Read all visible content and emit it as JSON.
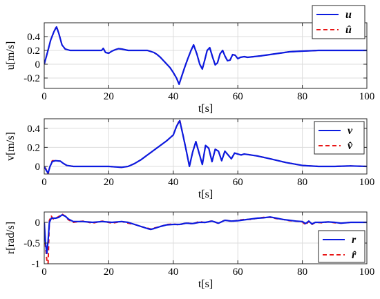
{
  "colors": {
    "estimate": "#e81515",
    "truth": "#0b1be0",
    "grid": "#dcdcdc"
  },
  "chart_data": [
    {
      "type": "line",
      "xlabel": "t[s]",
      "ylabel": "u[m/s]",
      "xlim": [
        0,
        100
      ],
      "ylim": [
        -0.35,
        0.6
      ],
      "xticks": [
        0,
        20,
        40,
        60,
        80,
        100
      ],
      "xtick_labels": [
        "0",
        "20",
        "40",
        "60",
        "80",
        "100"
      ],
      "yticks": [
        -0.2,
        0,
        0.2,
        0.4
      ],
      "ytick_labels": [
        "-0.2",
        "0",
        "0.2",
        "0.4"
      ],
      "grid": true,
      "legend": "top-right",
      "series": [
        {
          "name": "u",
          "style": "solid",
          "x": [
            0,
            1,
            2,
            3,
            3.8,
            4.5,
            5.5,
            6.5,
            8,
            10,
            12,
            15,
            17.8,
            18.3,
            19,
            20,
            21,
            22,
            23,
            24,
            25,
            26,
            28,
            30,
            32,
            34,
            35,
            36,
            37,
            38,
            39,
            40,
            41,
            41.8,
            42.5,
            43.5,
            44.5,
            45.5,
            46.3,
            47.3,
            48.2,
            49,
            49.8,
            50.5,
            51.3,
            52.2,
            53,
            53.7,
            54.5,
            55.3,
            56,
            56.8,
            57.6,
            58.4,
            59.2,
            60,
            60.8,
            62,
            63,
            65,
            67,
            70,
            73,
            76,
            80,
            85,
            90,
            95,
            100
          ],
          "y": [
            0,
            0.17,
            0.35,
            0.47,
            0.54,
            0.45,
            0.28,
            0.22,
            0.2,
            0.2,
            0.2,
            0.2,
            0.2,
            0.23,
            0.17,
            0.16,
            0.19,
            0.21,
            0.225,
            0.22,
            0.21,
            0.2,
            0.2,
            0.2,
            0.2,
            0.17,
            0.14,
            0.1,
            0.05,
            0,
            -0.05,
            -0.12,
            -0.2,
            -0.29,
            -0.19,
            -0.05,
            0.08,
            0.2,
            0.28,
            0.15,
            0.0,
            -0.07,
            0.07,
            0.2,
            0.24,
            0.1,
            -0.01,
            0.02,
            0.15,
            0.2,
            0.12,
            0.05,
            0.06,
            0.14,
            0.13,
            0.08,
            0.1,
            0.11,
            0.1,
            0.11,
            0.12,
            0.14,
            0.16,
            0.18,
            0.19,
            0.2,
            0.2,
            0.2,
            0.2
          ]
        },
        {
          "name": "û",
          "style": "dashed",
          "x": [
            0,
            1,
            2,
            3,
            3.8,
            4.5,
            5.5,
            6.5,
            8,
            10,
            12,
            15,
            17.8,
            18.3,
            19,
            20,
            21,
            22,
            23,
            24,
            25,
            26,
            28,
            30,
            32,
            34,
            35,
            36,
            37,
            38,
            39,
            40,
            41,
            41.8,
            42.5,
            43.5,
            44.5,
            45.5,
            46.3,
            47.3,
            48.2,
            49,
            49.8,
            50.5,
            51.3,
            52.2,
            53,
            53.7,
            54.5,
            55.3,
            56,
            56.8,
            57.6,
            58.4,
            59.2,
            60,
            60.8,
            62,
            63,
            65,
            67,
            70,
            73,
            76,
            80,
            85,
            90,
            95,
            100
          ],
          "y": [
            0,
            0.17,
            0.35,
            0.47,
            0.55,
            0.45,
            0.28,
            0.22,
            0.2,
            0.2,
            0.2,
            0.2,
            0.2,
            0.23,
            0.17,
            0.16,
            0.19,
            0.21,
            0.225,
            0.22,
            0.21,
            0.2,
            0.2,
            0.2,
            0.2,
            0.17,
            0.14,
            0.1,
            0.05,
            0,
            -0.05,
            -0.12,
            -0.2,
            -0.29,
            -0.19,
            -0.05,
            0.08,
            0.2,
            0.28,
            0.15,
            0.0,
            -0.07,
            0.07,
            0.2,
            0.24,
            0.1,
            -0.01,
            0.02,
            0.15,
            0.2,
            0.12,
            0.05,
            0.06,
            0.14,
            0.13,
            0.08,
            0.1,
            0.11,
            0.1,
            0.11,
            0.12,
            0.14,
            0.16,
            0.18,
            0.19,
            0.2,
            0.2,
            0.2,
            0.2
          ]
        }
      ]
    },
    {
      "type": "line",
      "xlabel": "t[s]",
      "ylabel": "v[m/s]",
      "xlim": [
        0,
        100
      ],
      "ylim": [
        -0.08,
        0.5
      ],
      "xticks": [
        0,
        20,
        40,
        60,
        80,
        100
      ],
      "xtick_labels": [
        "0",
        "20",
        "40",
        "60",
        "80",
        "100"
      ],
      "yticks": [
        0,
        0.2,
        0.4
      ],
      "ytick_labels": [
        "0",
        "0.2",
        "0.4"
      ],
      "grid": true,
      "legend": "top-right",
      "series": [
        {
          "name": "v",
          "style": "solid",
          "x": [
            0,
            0.6,
            1.2,
            1.8,
            2.5,
            3.5,
            5,
            6,
            7,
            9,
            12,
            15,
            18,
            20,
            22,
            24,
            26,
            28,
            30,
            32,
            34,
            36,
            38,
            40,
            41,
            42,
            43,
            44,
            45,
            46,
            47,
            48,
            49,
            50,
            51,
            52,
            53,
            54,
            55,
            56,
            57,
            58,
            59,
            60,
            61,
            62,
            64,
            66,
            70,
            75,
            80,
            85,
            90,
            95,
            100
          ],
          "y": [
            0,
            -0.04,
            -0.07,
            0.0,
            0.05,
            0.06,
            0.055,
            0.03,
            0.01,
            0.0,
            0.0,
            0.0,
            0.0,
            0.0,
            -0.005,
            -0.01,
            0.0,
            0.03,
            0.07,
            0.12,
            0.17,
            0.22,
            0.27,
            0.33,
            0.42,
            0.48,
            0.33,
            0.17,
            0.0,
            0.15,
            0.26,
            0.14,
            0.02,
            0.22,
            0.19,
            0.05,
            0.18,
            0.16,
            0.06,
            0.16,
            0.12,
            0.08,
            0.14,
            0.13,
            0.12,
            0.13,
            0.12,
            0.11,
            0.08,
            0.04,
            0.01,
            0.0,
            0.0,
            0.005,
            0.0
          ]
        },
        {
          "name": "v̂",
          "style": "dashed",
          "x": [
            0,
            0.6,
            1.2,
            1.8,
            2.5,
            3.5,
            5,
            6,
            7,
            9,
            12,
            15,
            18,
            20,
            22,
            24,
            26,
            28,
            30,
            32,
            34,
            36,
            38,
            40,
            41,
            42,
            43,
            44,
            45,
            46,
            47,
            48,
            49,
            50,
            51,
            52,
            53,
            54,
            55,
            56,
            57,
            58,
            59,
            60,
            61,
            62,
            64,
            66,
            70,
            75,
            80,
            85,
            90,
            95,
            100
          ],
          "y": [
            0,
            -0.03,
            -0.08,
            0.0,
            0.06,
            0.06,
            0.055,
            0.03,
            0.01,
            0.0,
            0.0,
            0.0,
            0.0,
            0.0,
            -0.005,
            -0.01,
            0.0,
            0.03,
            0.07,
            0.12,
            0.17,
            0.22,
            0.27,
            0.33,
            0.42,
            0.49,
            0.33,
            0.17,
            0.0,
            0.15,
            0.26,
            0.14,
            0.02,
            0.22,
            0.19,
            0.05,
            0.18,
            0.16,
            0.06,
            0.16,
            0.12,
            0.08,
            0.14,
            0.13,
            0.12,
            0.13,
            0.12,
            0.11,
            0.08,
            0.04,
            0.01,
            0.0,
            0.0,
            0.005,
            0.0
          ]
        }
      ]
    },
    {
      "type": "line",
      "xlabel": "t[s]",
      "ylabel": "r[rad/s]",
      "xlim": [
        0,
        100
      ],
      "ylim": [
        -1,
        0.25
      ],
      "xticks": [
        0,
        20,
        40,
        60,
        80,
        100
      ],
      "xtick_labels": [
        "0",
        "20",
        "40",
        "60",
        "80",
        "100"
      ],
      "yticks": [
        -1,
        -0.5,
        0
      ],
      "ytick_labels": [
        "-1",
        "-0.5",
        "0"
      ],
      "grid": true,
      "legend": "bottom-right",
      "series": [
        {
          "name": "r",
          "style": "solid",
          "x": [
            0,
            0.4,
            0.8,
            1.2,
            1.6,
            2.2,
            2.8,
            3.5,
            4.5,
            5.5,
            6.5,
            7.5,
            9,
            12,
            15,
            18,
            21,
            24,
            26,
            28,
            30,
            32,
            33,
            34,
            36,
            38,
            40,
            42,
            44,
            46,
            48,
            50,
            52,
            54,
            56,
            58,
            60,
            62,
            64,
            66,
            68,
            70,
            72,
            74,
            76,
            78,
            80,
            81,
            82,
            83,
            84,
            86,
            88,
            90,
            92,
            95,
            100
          ],
          "y": [
            0,
            -0.5,
            -0.75,
            -0.45,
            0.0,
            0.1,
            0.1,
            0.1,
            0.12,
            0.18,
            0.15,
            0.08,
            0.02,
            0.02,
            0.0,
            0.02,
            0.0,
            0.02,
            0.0,
            -0.05,
            -0.1,
            -0.15,
            -0.17,
            -0.15,
            -0.1,
            -0.06,
            -0.05,
            -0.05,
            -0.02,
            -0.03,
            0.0,
            0.0,
            0.03,
            -0.02,
            0.05,
            0.03,
            0.04,
            0.06,
            0.08,
            0.1,
            0.11,
            0.13,
            0.1,
            0.07,
            0.05,
            0.03,
            0.02,
            -0.03,
            0.03,
            -0.04,
            0.0,
            0.0,
            0.01,
            0.0,
            -0.02,
            0.0,
            0.0
          ]
        },
        {
          "name": "r̂",
          "style": "dashed",
          "x": [
            0,
            0.4,
            0.8,
            1.2,
            1.6,
            2.2,
            2.8,
            3.5,
            4.5,
            5.5,
            6.5,
            7.5,
            9,
            12,
            15,
            18,
            21,
            24,
            26,
            28,
            30,
            32,
            33,
            34,
            36,
            38,
            40,
            42,
            44,
            46,
            48,
            50,
            52,
            54,
            56,
            58,
            60,
            62,
            64,
            66,
            68,
            70,
            72,
            74,
            76,
            78,
            80,
            81,
            82,
            83,
            84,
            86,
            88,
            90,
            92,
            95,
            100
          ],
          "y": [
            0,
            -0.6,
            -0.9,
            -1.0,
            0.05,
            0.15,
            0.08,
            0.1,
            0.14,
            0.2,
            0.15,
            0.06,
            0.0,
            0.03,
            -0.02,
            0.03,
            -0.02,
            0.02,
            -0.02,
            -0.05,
            -0.1,
            -0.14,
            -0.16,
            -0.14,
            -0.1,
            -0.05,
            -0.04,
            -0.06,
            -0.01,
            -0.04,
            0.02,
            -0.01,
            0.04,
            -0.03,
            0.06,
            0.02,
            0.05,
            0.07,
            0.07,
            0.1,
            0.12,
            0.12,
            0.09,
            0.07,
            0.04,
            0.03,
            0.01,
            -0.06,
            0.02,
            -0.05,
            0.0,
            -0.01,
            0.01,
            -0.01,
            -0.02,
            0.0,
            0.0
          ]
        }
      ]
    }
  ]
}
